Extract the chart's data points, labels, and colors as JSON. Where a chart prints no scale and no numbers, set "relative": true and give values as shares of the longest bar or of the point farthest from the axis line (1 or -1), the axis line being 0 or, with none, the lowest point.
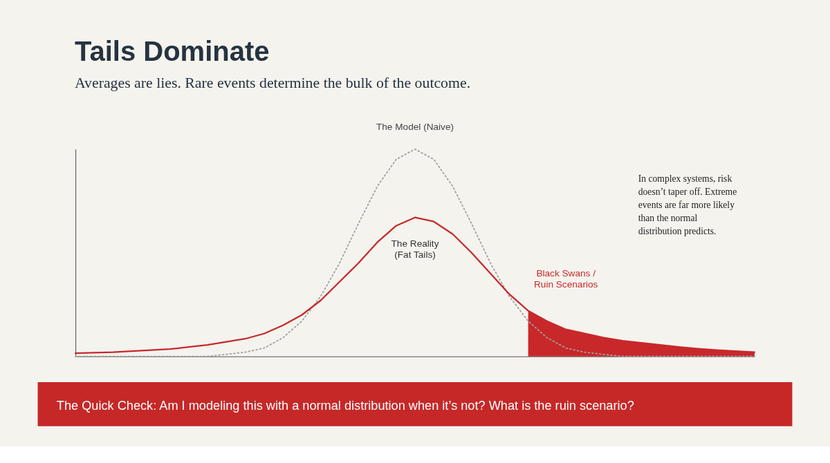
{
  "chart_data": {
    "type": "line",
    "title": "Tails Dominate",
    "subtitle": "Averages are lies. Rare events determine the bulk of the outcome.",
    "relative": true,
    "legend": false,
    "grid": false,
    "tick_labels": false,
    "categories": [
      null,
      null,
      null,
      null,
      null,
      null,
      null,
      null,
      null,
      null,
      null,
      null,
      null,
      null,
      null,
      null,
      null,
      null,
      null,
      null,
      null,
      null,
      null,
      null,
      null,
      null,
      null,
      null,
      null,
      null,
      null,
      null,
      null,
      null,
      null,
      null,
      null
    ],
    "series": [
      {
        "name": "The Model (Naive)",
        "line_style": "dotted",
        "color": "#a0a0a0",
        "values": [
          0,
          0,
          0,
          0,
          0,
          0,
          0,
          0,
          0.01,
          0.02,
          0.04,
          0.09,
          0.17,
          0.29,
          0.45,
          0.64,
          0.82,
          0.95,
          1,
          0.95,
          0.82,
          0.64,
          0.45,
          0.29,
          0.17,
          0.09,
          0.04,
          0.02,
          0.01,
          0,
          0,
          0,
          0,
          0,
          0,
          0,
          0
        ]
      },
      {
        "name": "The Reality (Fat Tails)",
        "line_style": "solid",
        "color": "#c8282a",
        "values": [
          0.015,
          0.018,
          0.02,
          0.025,
          0.03,
          0.035,
          0.045,
          0.055,
          0.07,
          0.085,
          0.11,
          0.15,
          0.2,
          0.27,
          0.36,
          0.45,
          0.55,
          0.63,
          0.67,
          0.65,
          0.59,
          0.5,
          0.4,
          0.3,
          0.22,
          0.17,
          0.13,
          0.11,
          0.09,
          0.075,
          0.065,
          0.055,
          0.045,
          0.037,
          0.03,
          0.025,
          0.02
        ]
      },
      {
        "name": "Black Swans / Ruin Scenarios",
        "type": "area",
        "color": "#c8282a",
        "values": [
          null,
          null,
          null,
          null,
          null,
          null,
          null,
          null,
          null,
          null,
          null,
          null,
          null,
          null,
          null,
          null,
          null,
          null,
          null,
          null,
          null,
          null,
          null,
          null,
          0.22,
          0.17,
          0.13,
          0.11,
          0.09,
          0.075,
          0.065,
          0.055,
          0.045,
          0.037,
          0.03,
          0.025,
          0.02
        ]
      }
    ],
    "annotations": [
      "In complex systems, risk doesn’t taper off. Extreme events are far more likely than the normal distribution predicts.",
      "The Quick Check: Am I modeling this with a normal distribution when it’s not? What is the ruin scenario?"
    ]
  }
}
